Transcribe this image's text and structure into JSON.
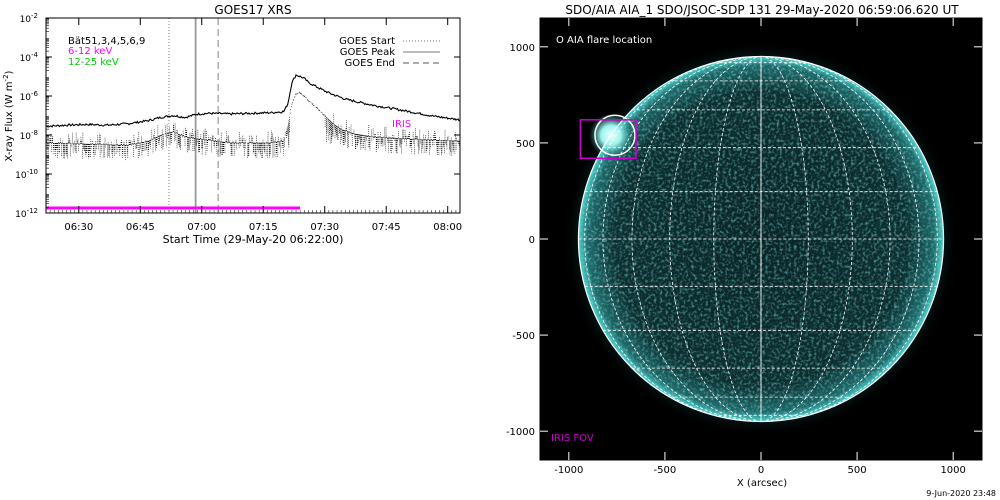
{
  "chart_data": [
    {
      "type": "line",
      "title": "GOES17 XRS",
      "xlabel": "Start Time (29-May-20 06:22:00)",
      "ylabel": "X-ray Flux (W m^-2)",
      "ylabel_main": "X-ray Flux (W m",
      "ylabel_sup": "-2",
      "ylabel_end": ")",
      "y_scale": "log",
      "ylim": [
        1e-12,
        0.01
      ],
      "xlim_minutes": [
        0,
        101
      ],
      "x_ticks": [
        {
          "label": "06:30",
          "minute": 8
        },
        {
          "label": "06:45",
          "minute": 23
        },
        {
          "label": "07:00",
          "minute": 38
        },
        {
          "label": "07:15",
          "minute": 53
        },
        {
          "label": "07:30",
          "minute": 68
        },
        {
          "label": "07:45",
          "minute": 83
        },
        {
          "label": "08:00",
          "minute": 98
        }
      ],
      "y_ticks": [
        {
          "base": "10",
          "exp": "-2",
          "value": 0.01
        },
        {
          "base": "10",
          "exp": "-4",
          "value": 0.0001
        },
        {
          "base": "10",
          "exp": "-6",
          "value": 1e-06
        },
        {
          "base": "10",
          "exp": "-8",
          "value": 1e-08
        },
        {
          "base": "10",
          "exp": "-10",
          "value": 1e-10
        },
        {
          "base": "10",
          "exp": "-12",
          "value": 1e-12
        }
      ],
      "legend_left": [
        {
          "text": "Bät51,3,4,5,6,9",
          "color": "#000000"
        },
        {
          "text": "6-12 keV",
          "color": "#ff00ff"
        },
        {
          "text": "12-25 keV",
          "color": "#00cc00"
        }
      ],
      "legend_right": [
        {
          "text": "GOES Start",
          "style": "dotted"
        },
        {
          "text": "GOES Peak",
          "style": "solid"
        },
        {
          "text": "GOES End",
          "style": "dashed"
        }
      ],
      "vertical_markers": [
        {
          "name": "goes-start",
          "minute": 30,
          "style": "dotted"
        },
        {
          "name": "goes-peak",
          "minute": 36.5,
          "style": "solid"
        },
        {
          "name": "goes-end",
          "minute": 42,
          "style": "dashed"
        }
      ],
      "annotation": {
        "text": "IRIS",
        "color": "#ff00ff"
      },
      "iris_coverage": {
        "start_minute": 0,
        "end_minute": 62,
        "color": "#ff00ff"
      },
      "series": [
        {
          "key": "long",
          "style": "solid",
          "x": [
            0,
            5,
            10,
            15,
            20,
            25,
            28,
            31,
            34,
            37,
            40,
            45,
            50,
            55,
            58,
            59,
            60,
            61,
            62,
            63,
            64,
            66,
            68,
            70,
            73,
            76,
            80,
            85,
            90,
            95,
            101
          ],
          "y": [
            2.8e-08,
            3.2e-08,
            3.5e-08,
            3.2e-08,
            3.8e-08,
            5.5e-08,
            8e-08,
            1e-07,
            8e-08,
            1.2e-07,
            1.3e-07,
            1.2e-07,
            1.3e-07,
            1.4e-07,
            1.6e-07,
            4e-07,
            5e-06,
            1.2e-05,
            1e-05,
            8e-06,
            5e-06,
            3e-06,
            1.8e-06,
            1.2e-06,
            7e-07,
            5e-07,
            3.3e-07,
            2.2e-07,
            1.4e-07,
            9e-08,
            6e-08
          ]
        },
        {
          "key": "short",
          "style": "dotted-noisy",
          "x": [
            0,
            10,
            20,
            25,
            28,
            31,
            34,
            38,
            45,
            55,
            58,
            59,
            60,
            61,
            62,
            63,
            64,
            66,
            68,
            70,
            72,
            75,
            80,
            90,
            101
          ],
          "y": [
            4e-09,
            3.5e-09,
            3e-09,
            5e-09,
            1e-08,
            1.5e-08,
            8e-09,
            6e-09,
            4e-09,
            4e-09,
            5e-09,
            3e-08,
            4e-07,
            1.3e-06,
            1.5e-06,
            1e-06,
            6e-07,
            2.5e-07,
            1e-07,
            4e-08,
            2e-08,
            1.2e-08,
            8e-09,
            6e-09,
            5e-09
          ]
        }
      ]
    },
    {
      "type": "image",
      "title": "SDO/AIA AIA_1 SDO/JSOC-SDP 131 29-May-2020 06:59:06.620 UT",
      "xlabel": "X (arcsec)",
      "ylabel": "",
      "xlim": [
        -1150,
        1150
      ],
      "ylim": [
        -1150,
        1150
      ],
      "x_ticks": [
        "-1000",
        "-500",
        "0",
        "500",
        "1000"
      ],
      "x_tick_values": [
        -1000,
        -500,
        0,
        500,
        1000
      ],
      "y_ticks": [
        "1000",
        "500",
        "0",
        "-500",
        "-1000"
      ],
      "y_tick_values": [
        1000,
        500,
        0,
        -500,
        -1000
      ],
      "solar_radius_arcsec": 950,
      "legend": "O AIA flare location",
      "flare_location_arcsec": [
        -760,
        540
      ],
      "iris_fov_label": "IRIS FOV",
      "iris_fov_box_arcsec": {
        "x0": -940,
        "x1": -650,
        "y0": 420,
        "y1": 620
      },
      "colors": {
        "disk": "#0c2a2c",
        "limb": "#55e0da",
        "grid": "#ffffff",
        "iris": "#cc00cc"
      }
    }
  ],
  "footer_date": "9-Jun-2020 23:48"
}
